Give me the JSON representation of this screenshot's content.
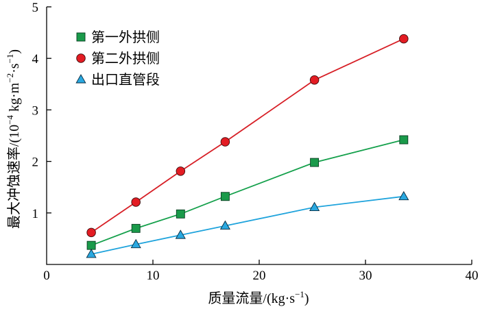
{
  "chart_data": {
    "type": "line",
    "title": "",
    "xlabel": "质量流量/(kg·s",
    "xlabel_sup": "−1",
    "xlabel_close": ")",
    "ylabel": "最大冲蚀速率/(10",
    "ylabel_sup1": "−4",
    "ylabel_mid": " kg·m",
    "ylabel_sup2": "−2",
    "ylabel_mid2": "·s",
    "ylabel_sup3": "−1",
    "ylabel_close": ")",
    "xlim": [
      0,
      40
    ],
    "ylim": [
      0,
      5
    ],
    "xticks": [
      "0",
      "10",
      "20",
      "30",
      "40"
    ],
    "yticks": [
      "1",
      "2",
      "3",
      "4",
      "5"
    ],
    "legend_position": "top-left",
    "grid": false,
    "series": [
      {
        "name": "第一外拱侧",
        "marker": "square",
        "line_color": "#14a04b",
        "marker_fill": "#1a9a4a",
        "x": [
          4.2,
          8.4,
          12.6,
          16.8,
          25.2,
          33.6
        ],
        "y": [
          0.37,
          0.7,
          0.98,
          1.32,
          1.98,
          2.42
        ]
      },
      {
        "name": "第二外拱侧",
        "marker": "circle",
        "line_color": "#d71f26",
        "marker_fill": "#e31c23",
        "x": [
          4.2,
          8.4,
          12.6,
          16.8,
          25.2,
          33.6
        ],
        "y": [
          0.62,
          1.21,
          1.81,
          2.38,
          3.58,
          4.38
        ]
      },
      {
        "name": "出口直管段",
        "marker": "triangle",
        "line_color": "#1ea3dc",
        "marker_fill": "#29a8e0",
        "x": [
          4.2,
          8.4,
          12.6,
          16.8,
          25.2,
          33.6
        ],
        "y": [
          0.2,
          0.39,
          0.57,
          0.75,
          1.11,
          1.32
        ]
      }
    ]
  }
}
